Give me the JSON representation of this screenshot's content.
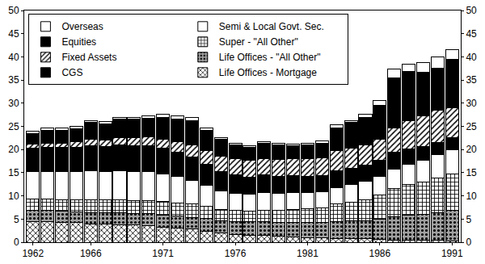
{
  "chart_data": {
    "type": "bar",
    "stacked": true,
    "legend": "top-left",
    "grid": false,
    "categories": [
      "1962",
      null,
      null,
      null,
      "1966",
      null,
      null,
      null,
      null,
      "1971",
      null,
      null,
      null,
      null,
      "1976",
      null,
      null,
      null,
      null,
      "1981",
      null,
      null,
      null,
      null,
      "1986",
      null,
      null,
      null,
      null,
      "1991"
    ],
    "ylim": [
      0,
      50
    ],
    "yticks": [
      0,
      5,
      10,
      15,
      20,
      25,
      30,
      35,
      40,
      45,
      50
    ],
    "y2lim": [
      0,
      50
    ],
    "y2ticks": [
      0,
      5,
      10,
      15,
      20,
      25,
      30,
      35,
      40,
      45,
      50
    ],
    "series": [
      {
        "name": "Life Offices - Mortgage",
        "color": "#ffffff",
        "marker": "crosshatch",
        "values": [
          4.5,
          4.5,
          4.3,
          4.2,
          4.0,
          3.9,
          3.8,
          3.7,
          3.5,
          3.3,
          3.0,
          2.8,
          2.4,
          2.0,
          1.7,
          1.5,
          1.4,
          1.3,
          1.2,
          1.0,
          0.9,
          0.8,
          0.8,
          0.7,
          0.6,
          0.5,
          0.5,
          0.4,
          0.4,
          0.3
        ]
      },
      {
        "name": "Life Offices - \"All Other\"",
        "color": "#a0a0a0",
        "marker": "dots",
        "values": [
          2.3,
          2.3,
          2.4,
          2.4,
          2.4,
          2.5,
          2.5,
          2.5,
          2.6,
          2.6,
          2.6,
          2.6,
          2.7,
          2.7,
          2.8,
          2.9,
          3.0,
          3.0,
          3.1,
          3.2,
          3.3,
          3.6,
          3.8,
          4.0,
          4.3,
          5.0,
          5.4,
          5.6,
          6.0,
          6.5
        ]
      },
      {
        "name": "Super - \"All Other\"",
        "color": "#ffffff",
        "marker": "checker",
        "values": [
          2.5,
          2.5,
          2.5,
          2.6,
          2.7,
          2.7,
          2.8,
          2.8,
          2.9,
          2.9,
          2.9,
          2.8,
          2.6,
          2.4,
          2.3,
          2.3,
          2.5,
          2.6,
          2.8,
          3.0,
          3.2,
          3.8,
          4.0,
          4.5,
          5.3,
          6.0,
          6.5,
          7.0,
          7.5,
          8.0
        ]
      },
      {
        "name": "Semi & Local Govt. Sec.",
        "color": "#ffffff",
        "marker": "solid",
        "values": [
          6.0,
          6.0,
          6.1,
          6.1,
          6.3,
          6.2,
          6.3,
          6.3,
          6.2,
          6.0,
          5.7,
          5.2,
          4.5,
          4.0,
          3.8,
          3.6,
          3.8,
          3.7,
          3.6,
          3.5,
          3.5,
          3.6,
          3.8,
          3.9,
          4.0,
          4.3,
          4.4,
          4.6,
          5.0,
          5.2
        ]
      },
      {
        "name": "CGS",
        "color": "#000000",
        "marker": "solid",
        "values": [
          5.0,
          5.2,
          5.1,
          5.2,
          5.5,
          5.4,
          5.6,
          5.6,
          5.6,
          5.5,
          5.2,
          5.0,
          4.6,
          4.2,
          4.0,
          3.8,
          3.8,
          3.6,
          3.6,
          3.5,
          3.4,
          3.7,
          3.6,
          3.5,
          3.4,
          3.6,
          3.4,
          3.0,
          2.7,
          2.6
        ]
      },
      {
        "name": "Fixed Assets",
        "color": "#ffffff",
        "marker": "hatch",
        "values": [
          0.8,
          0.9,
          1.0,
          1.2,
          1.3,
          1.4,
          1.6,
          1.7,
          1.9,
          2.0,
          2.3,
          2.6,
          3.0,
          3.3,
          3.4,
          3.5,
          3.6,
          3.7,
          3.7,
          3.8,
          3.9,
          4.2,
          4.3,
          4.4,
          4.6,
          5.2,
          6.0,
          6.6,
          6.8,
          6.4
        ]
      },
      {
        "name": "Equities",
        "color": "#000000",
        "marker": "solid",
        "values": [
          2.4,
          2.8,
          2.8,
          2.8,
          3.6,
          3.4,
          3.9,
          3.9,
          4.1,
          4.7,
          4.9,
          5.2,
          4.3,
          3.6,
          3.0,
          2.8,
          3.2,
          3.1,
          2.9,
          3.0,
          3.2,
          5.0,
          5.5,
          6.0,
          7.3,
          10.9,
          10.6,
          9.4,
          9.1,
          10.4
        ]
      },
      {
        "name": "Overseas",
        "color": "#ffffff",
        "marker": "solid",
        "values": [
          0.5,
          0.5,
          0.5,
          0.5,
          0.5,
          0.5,
          0.5,
          0.5,
          0.5,
          0.6,
          0.7,
          0.7,
          0.6,
          0.4,
          0.4,
          0.4,
          0.4,
          0.4,
          0.3,
          0.3,
          0.4,
          0.6,
          0.5,
          0.6,
          1.1,
          1.8,
          1.7,
          2.1,
          2.5,
          2.2
        ]
      }
    ]
  }
}
